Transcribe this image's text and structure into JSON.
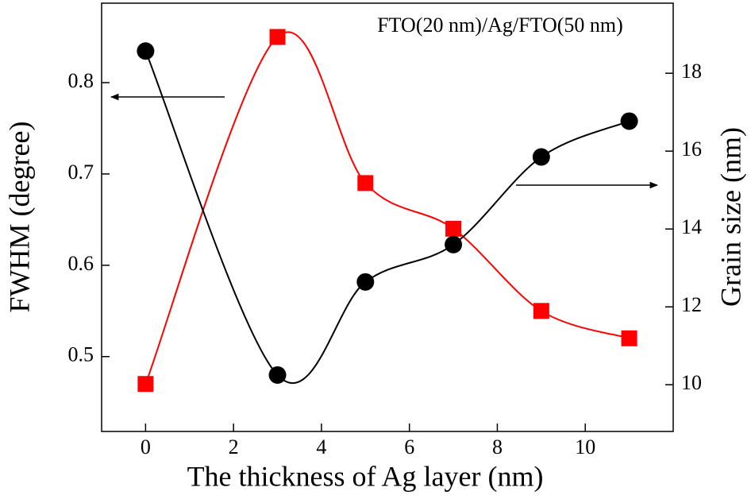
{
  "chart_data": {
    "type": "line",
    "annotation": "FTO(20 nm)/Ag/FTO(50 nm)",
    "x_label": "The thickness of Ag layer (nm)",
    "y_label": "FWHM (degree)",
    "y2_label": "Grain size (nm)",
    "x": [
      0,
      3,
      5,
      7,
      9,
      11
    ],
    "series": [
      {
        "color": "#ff0000",
        "marker": "square",
        "values": [
          0.47,
          0.85,
          0.69,
          0.64,
          0.55,
          0.52
        ]
      },
      {
        "color": "#000000",
        "marker": "circle",
        "axis": "y2",
        "values": [
          18.57,
          10.25,
          12.64,
          13.6,
          15.85,
          16.77
        ]
      }
    ],
    "xlim": [
      -1,
      12
    ],
    "xticks": [
      0,
      2,
      4,
      6,
      8,
      10
    ],
    "ylim": [
      0.418,
      0.887
    ],
    "yticks": [
      0.5,
      0.6,
      0.7,
      0.8
    ],
    "y2lim": [
      8.8,
      19.8
    ],
    "y2ticks": [
      10,
      12,
      14,
      16,
      18
    ]
  }
}
